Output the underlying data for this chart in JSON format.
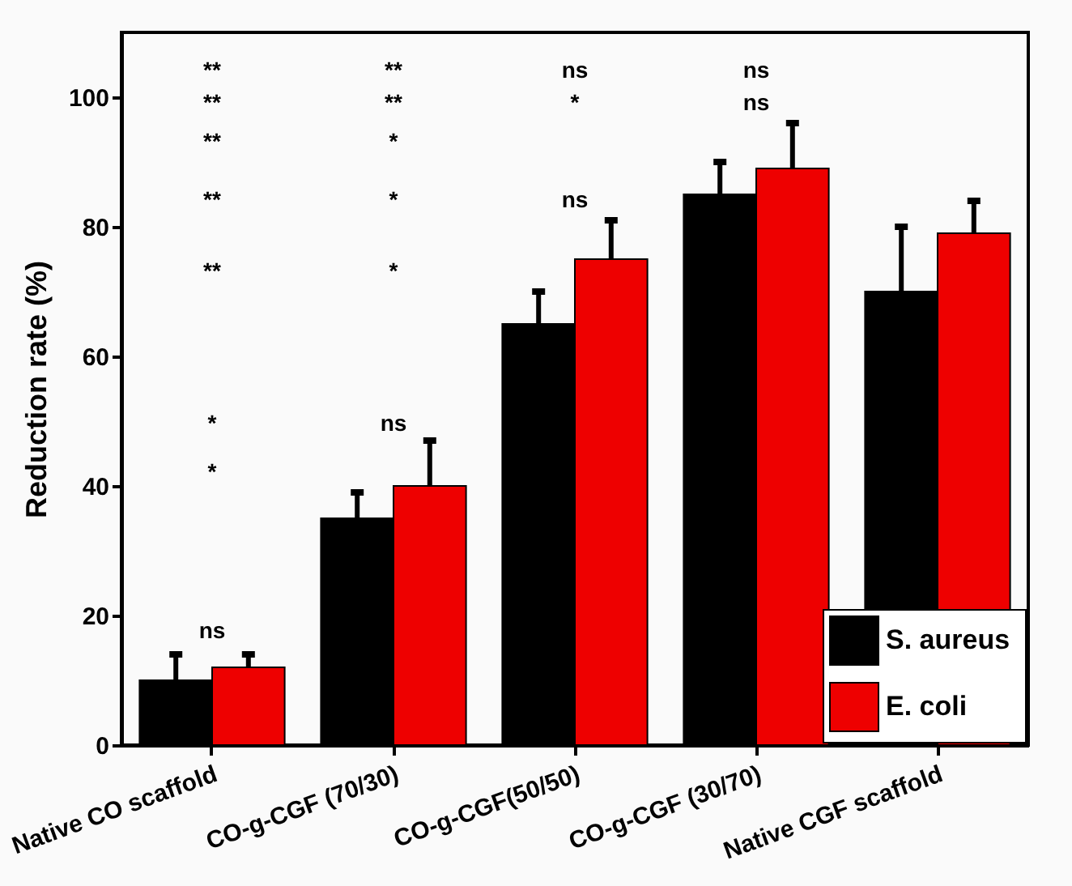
{
  "chart_data": {
    "type": "bar",
    "ylabel": "Reduction rate (%)",
    "categories": [
      "Native CO scaffold",
      "CO-g-CGF (70/30)",
      "CO-g-CGF(50/50)",
      "CO-g-CGF (30/70)",
      "Native CGF scaffold"
    ],
    "series": [
      {
        "name": "S.  aureus",
        "color": "#000000",
        "values": [
          10,
          35,
          65,
          85,
          70
        ],
        "errors": [
          4,
          4,
          5,
          5,
          10
        ]
      },
      {
        "name": "E. coli",
        "color": "#ee0000",
        "values": [
          12,
          40,
          75,
          89,
          79
        ],
        "errors": [
          2,
          7,
          6,
          7,
          5
        ]
      }
    ],
    "ylim": [
      0,
      110
    ],
    "yticks": [
      0,
      20,
      40,
      60,
      80,
      100
    ],
    "grid": false,
    "legend": "bottom right",
    "annotations": [
      "**",
      "**",
      "ns",
      "ns",
      "**",
      "**",
      "*",
      "ns",
      "**",
      "*",
      "**",
      "*",
      "ns",
      "**",
      "*",
      "*",
      "ns",
      "*",
      "ns"
    ]
  }
}
